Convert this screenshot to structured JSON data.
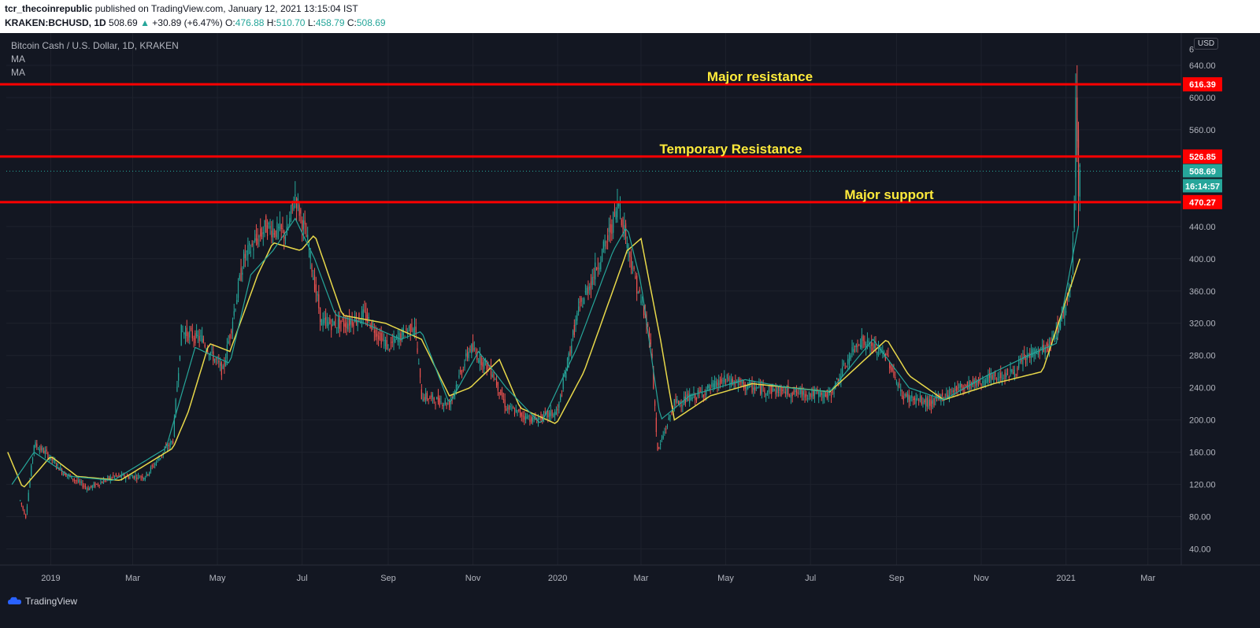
{
  "header": {
    "publisher": "tcr_thecoinrepublic",
    "published_text": " published on TradingView.com, January 12, 2021 13:15:04 IST",
    "symbol": "KRAKEN:BCHUSD, 1D",
    "price": "508.69",
    "change": "+30.89 (+6.47%)",
    "o_label": "O:",
    "o": "476.88",
    "h_label": "H:",
    "h": "510.70",
    "l_label": "L:",
    "l": "458.79",
    "c_label": "C:",
    "c": "508.69"
  },
  "legend": {
    "title": "Bitcoin Cash / U.S. Dollar, 1D, KRAKEN",
    "ma1": "MA",
    "ma2": "MA"
  },
  "currency_label": "USD",
  "footer": {
    "brand": "TradingView"
  },
  "colors": {
    "background": "#131722",
    "up": "#26a69a",
    "down": "#ef5350",
    "ma_fast": "#26a69a",
    "ma_slow": "#e8d84a",
    "level_line": "#ff0000",
    "annotation": "#ffeb3b"
  },
  "chart_data": {
    "type": "candlestick",
    "title": "Bitcoin Cash / U.S. Dollar, 1D, KRAKEN",
    "ylim": [
      20,
      680
    ],
    "y_ticks": [
      "40.00",
      "80.00",
      "120.00",
      "160.00",
      "200.00",
      "240.00",
      "280.00",
      "320.00",
      "360.00",
      "400.00",
      "440.00",
      "560.00",
      "600.00",
      "640.00"
    ],
    "y_top_partial": "6",
    "x_ticks": [
      "2019",
      "Mar",
      "May",
      "Jul",
      "Sep",
      "Nov",
      "2020",
      "Mar",
      "May",
      "Jul",
      "Sep",
      "Nov",
      "2021",
      "Mar"
    ],
    "price_anchors": [
      [
        "2018-12-10",
        100
      ],
      [
        "2018-12-14",
        80
      ],
      [
        "2018-12-20",
        170
      ],
      [
        "2018-12-28",
        160
      ],
      [
        "2019-01-10",
        135
      ],
      [
        "2019-01-28",
        115
      ],
      [
        "2019-02-15",
        130
      ],
      [
        "2019-03-10",
        130
      ],
      [
        "2019-03-30",
        175
      ],
      [
        "2019-04-05",
        310
      ],
      [
        "2019-04-20",
        300
      ],
      [
        "2019-05-05",
        260
      ],
      [
        "2019-05-20",
        400
      ],
      [
        "2019-06-05",
        440
      ],
      [
        "2019-06-20",
        430
      ],
      [
        "2019-06-26",
        480
      ],
      [
        "2019-07-05",
        420
      ],
      [
        "2019-07-15",
        320
      ],
      [
        "2019-08-01",
        320
      ],
      [
        "2019-08-15",
        330
      ],
      [
        "2019-09-01",
        290
      ],
      [
        "2019-09-20",
        320
      ],
      [
        "2019-09-25",
        230
      ],
      [
        "2019-10-15",
        220
      ],
      [
        "2019-10-30",
        290
      ],
      [
        "2019-11-15",
        260
      ],
      [
        "2019-11-25",
        215
      ],
      [
        "2019-12-15",
        200
      ],
      [
        "2020-01-01",
        210
      ],
      [
        "2020-01-15",
        330
      ],
      [
        "2020-02-05",
        420
      ],
      [
        "2020-02-14",
        470
      ],
      [
        "2020-02-25",
        380
      ],
      [
        "2020-03-08",
        300
      ],
      [
        "2020-03-13",
        160
      ],
      [
        "2020-03-25",
        220
      ],
      [
        "2020-04-10",
        230
      ],
      [
        "2020-05-01",
        250
      ],
      [
        "2020-05-20",
        240
      ],
      [
        "2020-06-15",
        235
      ],
      [
        "2020-07-15",
        230
      ],
      [
        "2020-08-05",
        300
      ],
      [
        "2020-08-25",
        280
      ],
      [
        "2020-09-05",
        230
      ],
      [
        "2020-09-25",
        220
      ],
      [
        "2020-10-15",
        240
      ],
      [
        "2020-11-05",
        250
      ],
      [
        "2020-11-25",
        260
      ],
      [
        "2020-12-05",
        280
      ],
      [
        "2020-12-20",
        290
      ],
      [
        "2021-01-01",
        340
      ],
      [
        "2021-01-05",
        380
      ],
      [
        "2021-01-09",
        570
      ],
      [
        "2021-01-11",
        510
      ]
    ],
    "ma_fast_anchors": [
      [
        "2018-12-04",
        120
      ],
      [
        "2018-12-20",
        160
      ],
      [
        "2019-01-15",
        130
      ],
      [
        "2019-02-15",
        125
      ],
      [
        "2019-03-25",
        165
      ],
      [
        "2019-04-15",
        290
      ],
      [
        "2019-05-10",
        270
      ],
      [
        "2019-05-25",
        380
      ],
      [
        "2019-06-10",
        410
      ],
      [
        "2019-06-26",
        450
      ],
      [
        "2019-07-10",
        400
      ],
      [
        "2019-07-25",
        330
      ],
      [
        "2019-08-15",
        320
      ],
      [
        "2019-09-10",
        300
      ],
      [
        "2019-09-25",
        310
      ],
      [
        "2019-10-15",
        220
      ],
      [
        "2019-11-05",
        285
      ],
      [
        "2019-11-25",
        240
      ],
      [
        "2019-12-20",
        195
      ],
      [
        "2020-01-15",
        290
      ],
      [
        "2020-02-10",
        410
      ],
      [
        "2020-02-20",
        440
      ],
      [
        "2020-03-01",
        370
      ],
      [
        "2020-03-15",
        200
      ],
      [
        "2020-04-05",
        230
      ],
      [
        "2020-05-15",
        250
      ],
      [
        "2020-06-15",
        240
      ],
      [
        "2020-07-15",
        235
      ],
      [
        "2020-08-15",
        300
      ],
      [
        "2020-09-10",
        240
      ],
      [
        "2020-10-05",
        225
      ],
      [
        "2020-11-05",
        255
      ],
      [
        "2020-12-05",
        280
      ],
      [
        "2020-12-25",
        295
      ],
      [
        "2021-01-11",
        450
      ]
    ],
    "ma_slow_anchors": [
      [
        "2018-12-01",
        160
      ],
      [
        "2018-12-12",
        115
      ],
      [
        "2019-01-01",
        155
      ],
      [
        "2019-01-20",
        130
      ],
      [
        "2019-02-20",
        125
      ],
      [
        "2019-03-30",
        165
      ],
      [
        "2019-04-10",
        210
      ],
      [
        "2019-04-25",
        295
      ],
      [
        "2019-05-10",
        285
      ],
      [
        "2019-05-30",
        380
      ],
      [
        "2019-06-10",
        420
      ],
      [
        "2019-06-30",
        410
      ],
      [
        "2019-07-10",
        430
      ],
      [
        "2019-07-30",
        330
      ],
      [
        "2019-08-30",
        320
      ],
      [
        "2019-09-25",
        300
      ],
      [
        "2019-10-15",
        230
      ],
      [
        "2019-10-30",
        240
      ],
      [
        "2019-11-20",
        275
      ],
      [
        "2019-12-05",
        215
      ],
      [
        "2019-12-31",
        195
      ],
      [
        "2020-01-20",
        260
      ],
      [
        "2020-02-20",
        410
      ],
      [
        "2020-03-01",
        425
      ],
      [
        "2020-03-15",
        300
      ],
      [
        "2020-03-25",
        200
      ],
      [
        "2020-04-20",
        230
      ],
      [
        "2020-05-20",
        245
      ],
      [
        "2020-07-15",
        235
      ],
      [
        "2020-08-25",
        300
      ],
      [
        "2020-09-10",
        255
      ],
      [
        "2020-10-05",
        225
      ],
      [
        "2020-11-10",
        245
      ],
      [
        "2020-12-15",
        260
      ],
      [
        "2021-01-11",
        400
      ]
    ],
    "horizontal_levels": [
      {
        "value": 616.39,
        "label": "616.39",
        "annotation": "Major resistance"
      },
      {
        "value": 526.85,
        "label": "526.85",
        "annotation": "Temporary Resistance"
      },
      {
        "value": 470.27,
        "label": "470.27",
        "annotation": "Major support"
      }
    ],
    "last_price": {
      "value": 508.69,
      "label": "508.69",
      "countdown": "16:14:57"
    }
  }
}
